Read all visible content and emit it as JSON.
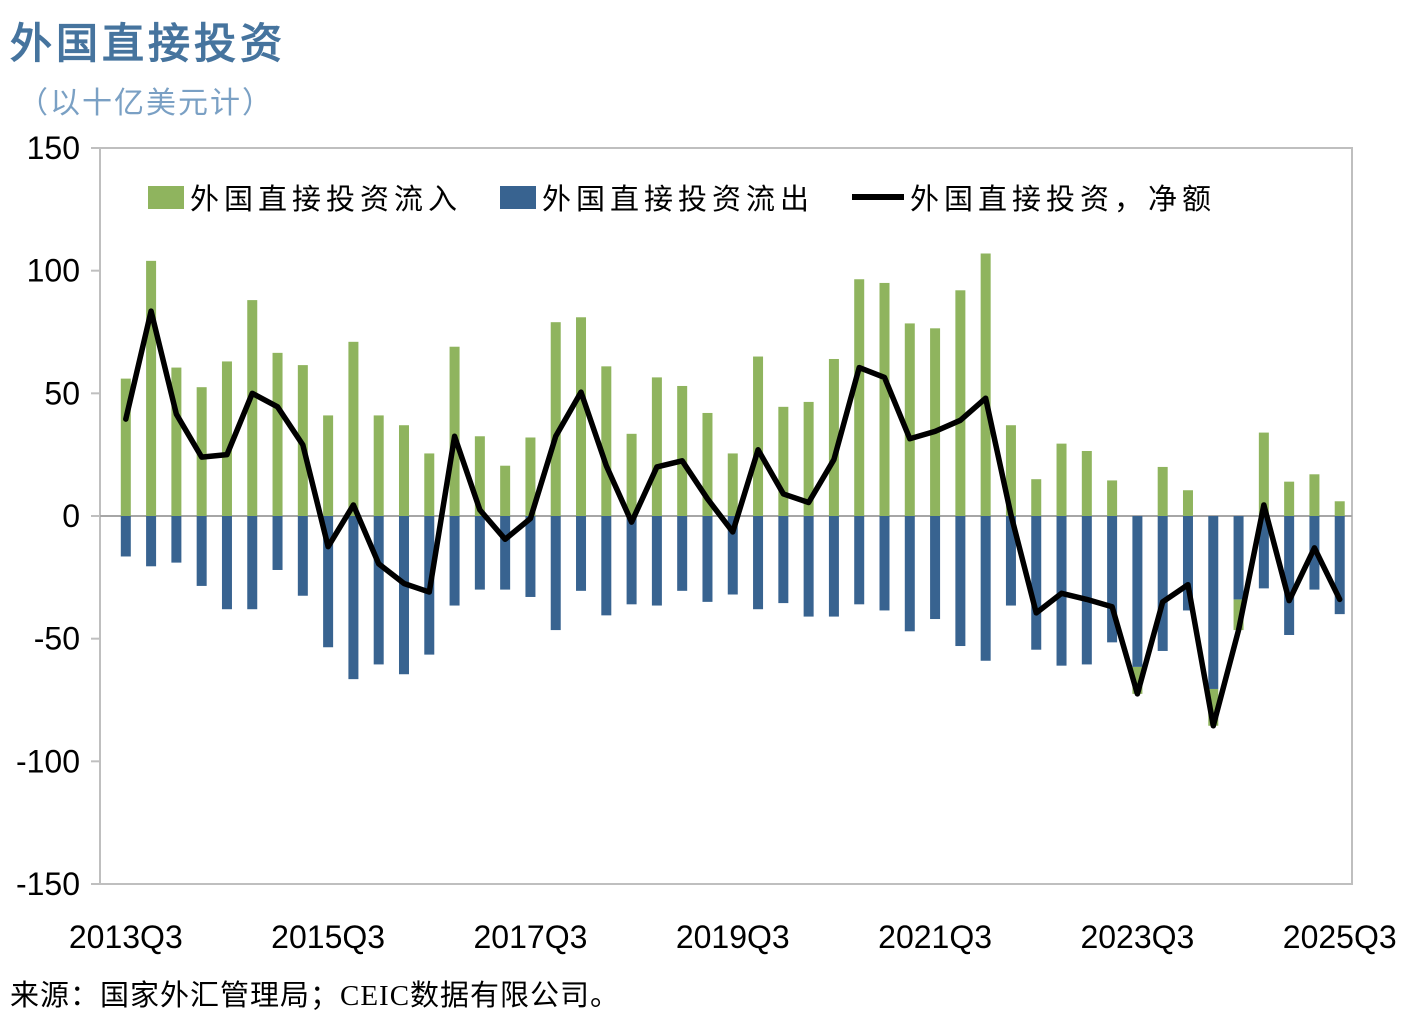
{
  "title": "外国直接投资",
  "subtitle": "（以十亿美元计）",
  "source": "来源：国家外汇管理局；CEIC数据有限公司。",
  "colors": {
    "inflow": "#8fb45e",
    "outflow": "#386390",
    "net": "#000000",
    "title": "#46749e",
    "subtitle": "#7aa0c4",
    "frame": "#bfbfbf",
    "zero_line": "#a6a6a6",
    "tick_text": "#000000"
  },
  "legend": {
    "inflow_label": "外国直接投资流入",
    "outflow_label": "外国直接投资流出",
    "net_label": "外国直接投资，净额"
  },
  "chart_data": {
    "type": "bar",
    "subtype": "stacked-bars-with-line",
    "title": "外国直接投资",
    "units": "十亿美元",
    "categories": [
      "2013Q3",
      "2013Q4",
      "2014Q1",
      "2014Q2",
      "2014Q3",
      "2014Q4",
      "2015Q1",
      "2015Q2",
      "2015Q3",
      "2015Q4",
      "2016Q1",
      "2016Q2",
      "2016Q3",
      "2016Q4",
      "2017Q1",
      "2017Q2",
      "2017Q3",
      "2017Q4",
      "2018Q1",
      "2018Q2",
      "2018Q3",
      "2018Q4",
      "2019Q1",
      "2019Q2",
      "2019Q3",
      "2019Q4",
      "2020Q1",
      "2020Q2",
      "2020Q3",
      "2020Q4",
      "2021Q1",
      "2021Q2",
      "2021Q3",
      "2021Q4",
      "2022Q1",
      "2022Q2",
      "2022Q3",
      "2022Q4",
      "2023Q1",
      "2023Q2",
      "2023Q3",
      "2023Q4",
      "2024Q1",
      "2024Q2",
      "2024Q3",
      "2024Q4",
      "2025Q1",
      "2025Q2",
      "2025Q3"
    ],
    "series": [
      {
        "name": "外国直接投资流入",
        "type": "bar",
        "values": [
          56,
          104,
          60.5,
          52.5,
          63,
          88,
          66.5,
          61.5,
          41,
          71,
          41,
          37,
          25.5,
          69,
          32.5,
          20.5,
          32,
          79,
          81,
          61,
          33.5,
          56.5,
          53,
          42,
          25.5,
          65,
          44.5,
          46.5,
          64,
          96.5,
          95,
          78.5,
          76.5,
          92,
          107,
          37,
          15,
          29.5,
          26.5,
          14.5,
          -11,
          20,
          10.5,
          -15,
          -12.5,
          34,
          14,
          17,
          6
        ]
      },
      {
        "name": "外国直接投资流出",
        "type": "bar",
        "values": [
          -16.5,
          -20.5,
          -19,
          -28.5,
          -38,
          -38,
          -22,
          -32.5,
          -53.5,
          -66.5,
          -60.5,
          -64.5,
          -56.5,
          -36.5,
          -30,
          -30,
          -33,
          -46.5,
          -30.5,
          -40.5,
          -36,
          -36.5,
          -30.5,
          -35,
          -32,
          -38,
          -35.5,
          -41,
          -41,
          -36,
          -38.5,
          -47,
          -42,
          -53,
          -59,
          -36.5,
          -54.5,
          -61,
          -60.5,
          -51.5,
          -61.5,
          -55,
          -38.5,
          -70.5,
          -34,
          -29.5,
          -48.5,
          -30,
          -40
        ]
      },
      {
        "name": "外国直接投资，净额",
        "type": "line",
        "values": [
          39.5,
          83.5,
          41.5,
          24,
          25,
          50,
          44.5,
          29,
          -12.5,
          4.5,
          -19.5,
          -27.5,
          -31,
          32.5,
          2.5,
          -9.5,
          -1,
          32.5,
          50.5,
          20.5,
          -2.5,
          20,
          22.5,
          7,
          -6.5,
          27,
          9,
          5.5,
          23,
          60.5,
          56.5,
          31.5,
          34.5,
          39,
          48,
          0.5,
          -39.5,
          -31.5,
          -34,
          -37,
          -72.5,
          -35,
          -28,
          -85.5,
          -46.5,
          4.5,
          -34.5,
          -13,
          -34
        ]
      }
    ],
    "ylim": [
      -150,
      150
    ],
    "y_ticks": [
      150,
      100,
      50,
      0,
      -50,
      -100,
      -150
    ],
    "x_tick_indices": [
      0,
      8,
      16,
      24,
      32,
      40,
      48
    ],
    "x_tick_labels": [
      "2013Q3",
      "2015Q3",
      "2017Q3",
      "2019Q3",
      "2021Q3",
      "2023Q3",
      "2025Q3"
    ],
    "grid": "zero-line-only",
    "legend_position": "top-inside"
  }
}
